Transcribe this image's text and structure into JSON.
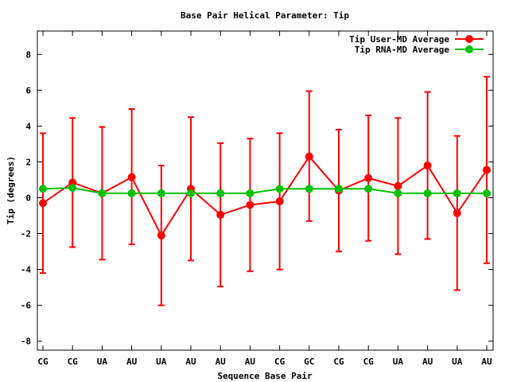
{
  "chart_data": {
    "type": "line",
    "title": "Base Pair Helical Parameter: Tip",
    "xlabel": "Sequence Base Pair",
    "ylabel": "Tip (degrees)",
    "ylim": [
      -8.5,
      9.3
    ],
    "yticks": [
      -8,
      -6,
      -4,
      -2,
      0,
      2,
      4,
      6,
      8
    ],
    "grid": false,
    "legend_position": "top-right",
    "categories": [
      "CG",
      "CG",
      "UA",
      "AU",
      "UA",
      "AU",
      "AU",
      "AU",
      "CG",
      "GC",
      "CG",
      "CG",
      "UA",
      "AU",
      "UA",
      "AU"
    ],
    "series": [
      {
        "name": "Tip User-MD Average",
        "color": "#ff0000",
        "values": [
          -0.3,
          0.85,
          0.25,
          1.15,
          -2.1,
          0.5,
          -0.95,
          -0.4,
          -0.2,
          2.3,
          0.4,
          1.1,
          0.65,
          1.8,
          -0.85,
          1.55
        ],
        "error_low": [
          -4.2,
          -2.75,
          -3.45,
          -2.6,
          -6.0,
          -3.5,
          -4.95,
          -4.1,
          -4.0,
          -1.3,
          -3.0,
          -2.4,
          -3.15,
          -2.3,
          -5.15,
          -3.65
        ],
        "error_high": [
          3.6,
          4.45,
          3.95,
          4.95,
          1.8,
          4.5,
          3.05,
          3.3,
          3.6,
          5.95,
          3.8,
          4.6,
          4.45,
          5.9,
          3.45,
          6.75
        ]
      },
      {
        "name": "Tip RNA-MD Average",
        "color": "#00c000",
        "values": [
          0.5,
          0.55,
          0.25,
          0.25,
          0.25,
          0.25,
          0.25,
          0.25,
          0.5,
          0.5,
          0.5,
          0.5,
          0.25,
          0.25,
          0.25,
          0.25
        ]
      }
    ]
  }
}
